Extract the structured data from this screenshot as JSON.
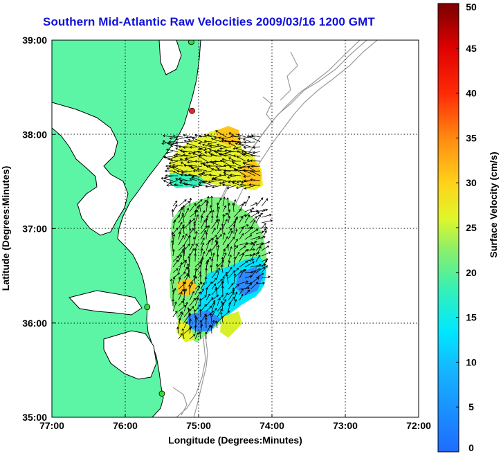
{
  "title": "Southern Mid-Atlantic Raw Velocities 2009/03/16 1200 GMT",
  "axes": {
    "xlabel": "Longitude (Degrees:Minutes)",
    "ylabel": "Latitude (Degrees:Minutes)",
    "x_ticks": [
      "77:00",
      "76:00",
      "75:00",
      "74:00",
      "73:00",
      "72:00"
    ],
    "y_ticks": [
      "39:00",
      "38:00",
      "37:00",
      "36:00",
      "35:00"
    ],
    "x_range": [
      -77,
      -72
    ],
    "y_range": [
      35,
      39
    ],
    "grid": true
  },
  "colorbar": {
    "label": "Surface Velocity (cm/s)",
    "ticks": [
      "0",
      "5",
      "10",
      "15",
      "20",
      "25",
      "30",
      "35",
      "40",
      "45",
      "50"
    ],
    "range": [
      0,
      50
    ]
  },
  "colors": {
    "land": "#5cf5a6",
    "title": "#1111d9",
    "bathymetry": "#9a9a9a"
  },
  "stations": [
    {
      "lon": -75.1,
      "lat": 38.98,
      "color": "#33dd33"
    },
    {
      "lon": -75.09,
      "lat": 38.25,
      "color": "#ee2222"
    },
    {
      "lon": -75.7,
      "lat": 36.17,
      "color": "#33dd33"
    },
    {
      "lon": -75.5,
      "lat": 35.25,
      "color": "#33dd33"
    }
  ]
}
